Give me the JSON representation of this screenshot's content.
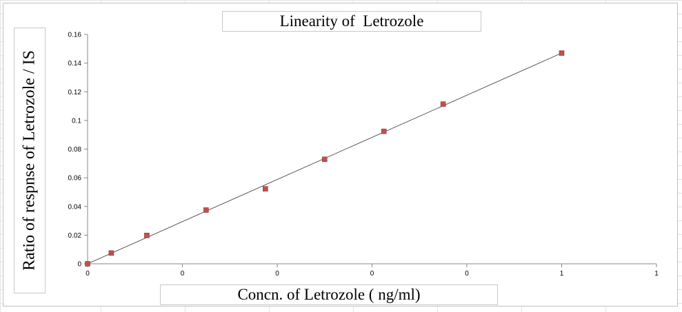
{
  "chart_data": {
    "type": "scatter",
    "title": "Linearity of  Letrozole",
    "xlabel": "Concn. of Letrozole ( ng/ml)",
    "ylabel": "Ratio of respnse of Letrozole / IS",
    "x_tick_labels": [
      "0",
      "0",
      "0",
      "0",
      "0",
      "1",
      "1"
    ],
    "y_tick_labels": [
      "0",
      "0.02",
      "0.04",
      "0.06",
      "0.08",
      "0.1",
      "0.12",
      "0.14",
      "0.16"
    ],
    "ylim": [
      0,
      0.16
    ],
    "grid": false,
    "legend": "none",
    "series": [
      {
        "x": [
          0,
          0.05,
          0.125,
          0.25,
          0.375,
          0.5,
          0.625,
          0.75,
          1.0
        ],
        "y": [
          0.0,
          0.0075,
          0.0198,
          0.0375,
          0.0523,
          0.0729,
          0.0924,
          0.1114,
          0.147
        ],
        "marker": "square",
        "color": "#c0504d"
      }
    ],
    "trendline": {
      "type": "linear",
      "color": "#595959",
      "x": [
        0,
        1.0
      ],
      "y": [
        0,
        0.147
      ]
    }
  }
}
